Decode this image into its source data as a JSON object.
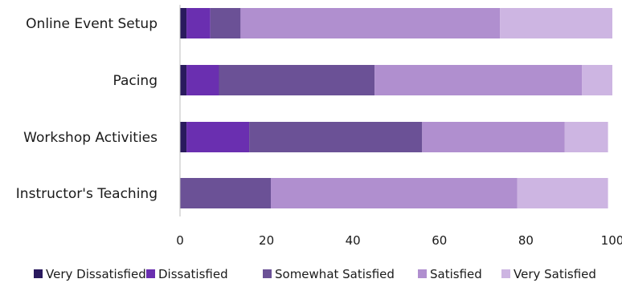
{
  "chart_data": {
    "type": "bar",
    "orientation": "horizontal",
    "stacked": true,
    "categories": [
      "Online Event Setup",
      "Pacing",
      "Workshop Activities",
      "Instructor's Teaching"
    ],
    "series": [
      {
        "name": "Very Dissatisfied",
        "color": "#2a1a5e",
        "values": [
          1.5,
          1.5,
          1.5,
          0
        ]
      },
      {
        "name": "Dissatisfied",
        "color": "#6a2fb0",
        "values": [
          5.5,
          7.5,
          14.5,
          0
        ]
      },
      {
        "name": "Somewhat Satisfied",
        "color": "#6b5196",
        "values": [
          7,
          36,
          40,
          21
        ]
      },
      {
        "name": "Satisfied",
        "color": "#b08fcf",
        "values": [
          60,
          48,
          33,
          57
        ]
      },
      {
        "name": "Very Satisfied",
        "color": "#cdb5e2",
        "values": [
          26,
          7,
          10,
          21
        ]
      }
    ],
    "xlim": [
      0,
      100
    ],
    "xticks": [
      "0",
      "20",
      "40",
      "60",
      "80",
      "100"
    ],
    "grid": false,
    "legend_position": "bottom",
    "title": "",
    "xlabel": "",
    "ylabel": ""
  }
}
